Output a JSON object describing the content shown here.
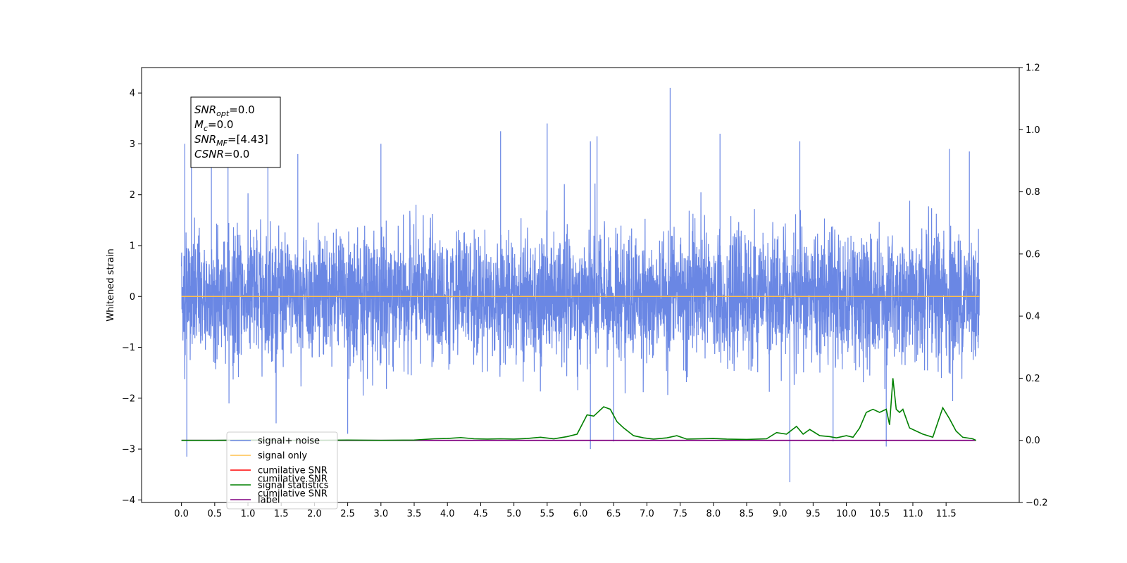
{
  "chart_data": {
    "type": "line",
    "ylabel": "Whitened strain",
    "xlim": [
      -0.6,
      12.6
    ],
    "ylim": [
      -4.05,
      4.5
    ],
    "y2lim": [
      -0.2,
      1.2
    ],
    "x_ticks": [
      "0.0",
      "0.5",
      "1.0",
      "1.5",
      "2.0",
      "2.5",
      "3.0",
      "3.5",
      "4.0",
      "4.5",
      "5.0",
      "5.5",
      "6.0",
      "6.5",
      "7.0",
      "7.5",
      "8.0",
      "8.5",
      "9.0",
      "9.5",
      "10.0",
      "10.5",
      "11.0",
      "11.5"
    ],
    "y_ticks": [
      "−4",
      "−3",
      "−2",
      "−1",
      "0",
      "1",
      "2",
      "3",
      "4"
    ],
    "y2_ticks": [
      "−0.2",
      "0.0",
      "0.2",
      "0.4",
      "0.6",
      "0.8",
      "1.0",
      "1.2"
    ],
    "grid": false,
    "colors": {
      "noise": "#6a87e4",
      "signal_only": "#ffc04d",
      "cumulative_snr": "#ff0000",
      "statistics": "#008000",
      "label": "#800080",
      "faded_text": "#c8c8c8"
    },
    "annotation": {
      "snr_opt": {
        "base": "SNR",
        "sub": "opt",
        "value": "=0.0"
      },
      "mc": {
        "base": "M",
        "sub": "c",
        "value": "=0.0"
      },
      "snr_mf": {
        "base": "SNR",
        "sub": "MF",
        "value": "=[4.43]"
      },
      "csnr": {
        "base": "CSNR",
        "value": "=0.0"
      }
    },
    "legend": {
      "placement": "lower-left",
      "entries": [
        {
          "label": "signal+ noise",
          "color": "#6a87e4"
        },
        {
          "label": "signal only",
          "color": "#ffc04d"
        },
        {
          "label": "cumilative SNR",
          "color": "#ff0000"
        },
        {
          "label": "signal statistics",
          "color": "#008000"
        },
        {
          "label": "label",
          "color": "#800080"
        }
      ],
      "faded_overlap_texts": [
        "cumilative SNR",
        "cumilative SNR"
      ]
    },
    "series": [
      {
        "name": "signal+ noise",
        "axis": "left",
        "style": "noise",
        "x_range": [
          0,
          12
        ],
        "noise_sigma": 0.62,
        "spikes": [
          {
            "x": 0.05,
            "y": 3.0
          },
          {
            "x": 0.08,
            "y": -3.15
          },
          {
            "x": 0.15,
            "y": 2.7
          },
          {
            "x": 0.45,
            "y": 2.6
          },
          {
            "x": 0.7,
            "y": 2.7
          },
          {
            "x": 1.3,
            "y": 2.75
          },
          {
            "x": 1.75,
            "y": 2.8
          },
          {
            "x": 4.8,
            "y": 3.25
          },
          {
            "x": 5.5,
            "y": 3.4
          },
          {
            "x": 6.15,
            "y": 3.05
          },
          {
            "x": 6.25,
            "y": 3.15
          },
          {
            "x": 6.15,
            "y": -3.0
          },
          {
            "x": 7.35,
            "y": 4.1
          },
          {
            "x": 8.1,
            "y": 3.2
          },
          {
            "x": 9.15,
            "y": -3.65
          },
          {
            "x": 9.3,
            "y": 3.05
          },
          {
            "x": 11.55,
            "y": 2.9
          },
          {
            "x": 11.85,
            "y": 2.85
          },
          {
            "x": 10.6,
            "y": -2.95
          },
          {
            "x": 6.5,
            "y": -2.85
          },
          {
            "x": 3.0,
            "y": 3.0
          },
          {
            "x": 2.5,
            "y": -2.7
          },
          {
            "x": 9.8,
            "y": -2.85
          }
        ]
      },
      {
        "name": "signal only",
        "axis": "left",
        "x": [
          0,
          12
        ],
        "y": [
          0.0,
          0.0
        ]
      },
      {
        "name": "signal statistics",
        "axis": "right",
        "x": [
          0.0,
          0.5,
          1.0,
          1.5,
          2.0,
          2.5,
          3.0,
          3.5,
          3.8,
          4.0,
          4.2,
          4.4,
          4.6,
          4.8,
          5.0,
          5.2,
          5.4,
          5.6,
          5.8,
          5.95,
          6.1,
          6.2,
          6.35,
          6.45,
          6.55,
          6.65,
          6.8,
          6.95,
          7.1,
          7.3,
          7.45,
          7.6,
          7.8,
          8.0,
          8.2,
          8.5,
          8.8,
          8.95,
          9.1,
          9.25,
          9.35,
          9.45,
          9.6,
          9.75,
          9.85,
          10.0,
          10.1,
          10.2,
          10.3,
          10.4,
          10.5,
          10.6,
          10.65,
          10.7,
          10.75,
          10.8,
          10.85,
          10.95,
          11.05,
          11.15,
          11.3,
          11.45,
          11.55,
          11.65,
          11.75,
          11.9,
          11.95
        ],
        "y": [
          0.0,
          0.0,
          0.001,
          0.0,
          0.0,
          0.001,
          0.0,
          0.001,
          0.005,
          0.006,
          0.009,
          0.005,
          0.004,
          0.005,
          0.004,
          0.006,
          0.01,
          0.005,
          0.012,
          0.02,
          0.082,
          0.078,
          0.108,
          0.1,
          0.06,
          0.04,
          0.015,
          0.008,
          0.004,
          0.008,
          0.015,
          0.004,
          0.005,
          0.006,
          0.004,
          0.003,
          0.005,
          0.025,
          0.02,
          0.045,
          0.02,
          0.035,
          0.015,
          0.012,
          0.008,
          0.015,
          0.01,
          0.04,
          0.09,
          0.1,
          0.09,
          0.1,
          0.05,
          0.2,
          0.1,
          0.09,
          0.1,
          0.04,
          0.03,
          0.02,
          0.01,
          0.105,
          0.07,
          0.03,
          0.01,
          0.005,
          0.0
        ]
      },
      {
        "name": "label",
        "axis": "right",
        "x": [
          0,
          11.95
        ],
        "y": [
          0.0,
          0.0
        ]
      }
    ]
  }
}
